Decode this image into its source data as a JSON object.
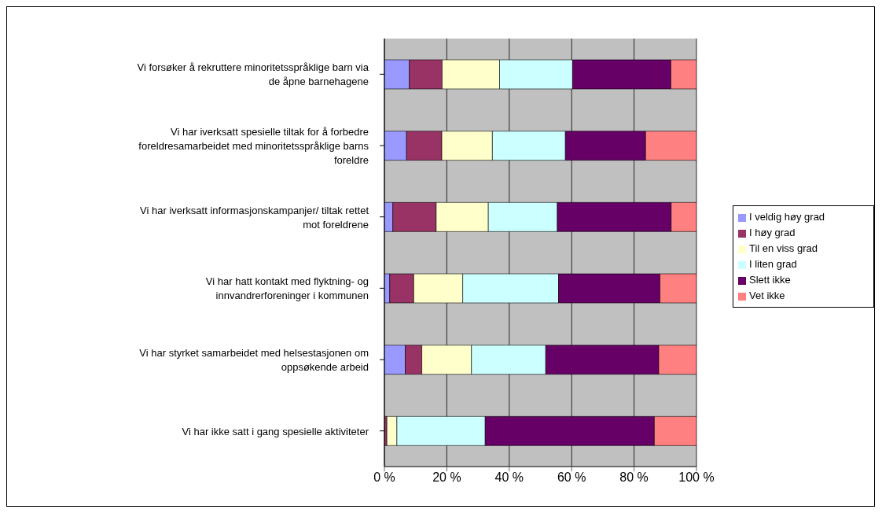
{
  "chart_data": {
    "type": "bar",
    "orientation": "horizontal",
    "stacked": true,
    "categories": [
      "Vi forsøker å rekruttere minoritetsspråklige barn via de åpne barnehagene",
      "Vi har iverksatt spesielle tiltak for å forbedre foreldresamarbeidet med minoritetsspråklige barns foreldre",
      "Vi har iverksatt informasjonskampanjer/ tiltak rettet mot foreldrene",
      "Vi har hatt kontakt med flyktning- og innvandrerforeninger i kommunen",
      "Vi har styrket samarbeidet med helsestasjonen om oppsøkende arbeid",
      "Vi har ikke satt i gang spesielle aktiviteter"
    ],
    "series": [
      {
        "name": "I veldig høy grad",
        "color": "#9999ff",
        "values": [
          8.0,
          7.1,
          2.7,
          1.7,
          6.7,
          0
        ]
      },
      {
        "name": "I høy grad",
        "color": "#993366",
        "values": [
          10.5,
          11.3,
          13.9,
          7.7,
          5.3,
          0.8
        ]
      },
      {
        "name": "Til en viss grad",
        "color": "#ffffcc",
        "values": [
          18.4,
          16.2,
          16.7,
          15.7,
          15.9,
          3.2
        ]
      },
      {
        "name": "I liten grad",
        "color": "#ccffff",
        "values": [
          23.4,
          23.4,
          22.1,
          30.7,
          23.8,
          28.3
        ]
      },
      {
        "name": "Slett ikke",
        "color": "#660066",
        "values": [
          31.5,
          25.7,
          36.5,
          32.5,
          36.2,
          54.2
        ]
      },
      {
        "name": "Vet ikke",
        "color": "#ff8080",
        "values": [
          8.2,
          16.3,
          8.1,
          11.7,
          12.1,
          13.5
        ]
      }
    ],
    "xlim": [
      0,
      100
    ],
    "xticks": [
      {
        "value": 0,
        "label": "0 %"
      },
      {
        "value": 20,
        "label": "20 %"
      },
      {
        "value": 40,
        "label": "40 %"
      },
      {
        "value": 60,
        "label": "60 %"
      },
      {
        "value": 80,
        "label": "80 %"
      },
      {
        "value": 100,
        "label": "100 %"
      }
    ],
    "grid": "x",
    "legend": "right"
  }
}
